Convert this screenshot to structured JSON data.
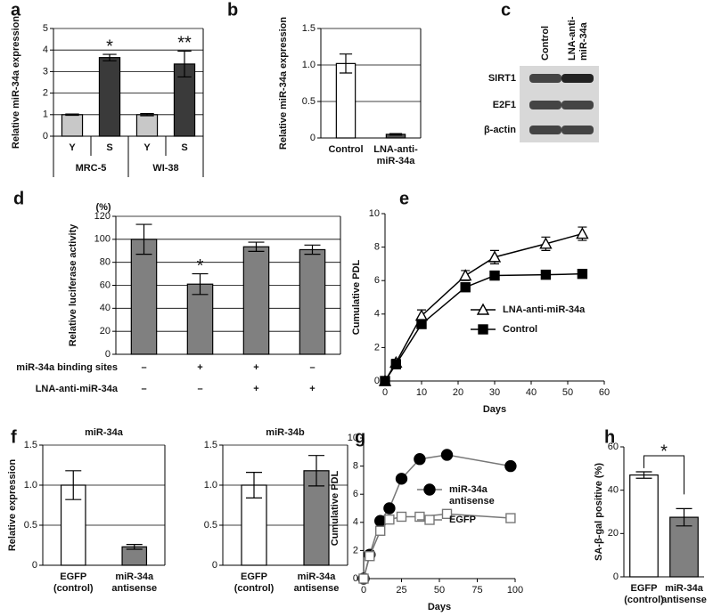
{
  "chart_data": [
    {
      "type": "bar",
      "panel": "a",
      "y_label": "Relative miR-34a expression",
      "categories": [
        "Y",
        "S",
        "Y",
        "S"
      ],
      "groups": [
        "MRC-5",
        "WI-38"
      ],
      "values": [
        1,
        3.65,
        1,
        3.35
      ],
      "errors": [
        0.03,
        0.15,
        0.05,
        0.6
      ],
      "colors": [
        "#c8c8c8",
        "#3a3a3a",
        "#c8c8c8",
        "#3a3a3a"
      ],
      "ylim": [
        0,
        5
      ],
      "yticks": [
        0,
        1,
        2,
        3,
        4,
        5
      ],
      "grid": true,
      "annotations": [
        "*",
        "**"
      ]
    },
    {
      "type": "bar",
      "panel": "b",
      "y_label": "Relative miR-34a expression",
      "categories": [
        "Control",
        "LNA-anti-\nmiR-34a"
      ],
      "values": [
        1.02,
        0.05
      ],
      "errors": [
        0.13,
        0.01
      ],
      "colors": [
        "#ffffff",
        "#555555"
      ],
      "ylim": [
        0,
        1.5
      ],
      "yticks": [
        0,
        0.5,
        {
          "value": 1,
          "label": "1.0"
        },
        1.5
      ],
      "grid": true
    },
    {
      "type": "blot",
      "panel": "c",
      "lanes": [
        "Control",
        "LNA-anti-\nmiR-34a"
      ],
      "rows": [
        "SIRT1",
        "E2F1",
        "β-actin"
      ]
    },
    {
      "type": "bar",
      "panel": "d",
      "y_label": "Relative luciferase activity",
      "y_unit": "(%)",
      "values": [
        100,
        61,
        93.5,
        91
      ],
      "errors": [
        13,
        9,
        4,
        4
      ],
      "colors": [
        "#808080",
        "#808080",
        "#808080",
        "#808080"
      ],
      "ylim": [
        0,
        120
      ],
      "yticks": [
        0,
        20,
        40,
        60,
        80,
        100,
        120
      ],
      "grid": true,
      "annotations": [
        "*"
      ],
      "conditions": [
        {
          "label": "miR-34a binding sites",
          "values": [
            "–",
            "+",
            "+",
            "–"
          ]
        },
        {
          "label": "LNA-anti-miR-34a",
          "values": [
            "–",
            "–",
            "+",
            "+"
          ]
        }
      ]
    },
    {
      "type": "line",
      "panel": "e",
      "x_label": "Days",
      "y_label": "Cumulative PDL",
      "x": [
        0,
        3,
        10,
        22,
        30,
        44,
        54
      ],
      "series": [
        {
          "name": "LNA-anti-miR-34a",
          "color": "#000000",
          "marker": "triangle-open",
          "values": [
            0,
            1.1,
            3.9,
            6.3,
            7.4,
            8.2,
            8.8
          ],
          "errors": [
            0,
            0.2,
            0.35,
            0.3,
            0.4,
            0.4,
            0.4
          ]
        },
        {
          "name": "Control",
          "color": "#000000",
          "marker": "square-filled",
          "values": [
            0,
            1.0,
            3.4,
            5.6,
            6.3,
            6.35,
            6.4
          ]
        }
      ],
      "xlim": [
        0,
        60
      ],
      "xticks": [
        0,
        10,
        20,
        30,
        40,
        50,
        60
      ],
      "ylim": [
        0,
        10
      ],
      "yticks": [
        0,
        2,
        4,
        6,
        8,
        10
      ],
      "legend": "lower right"
    },
    {
      "type": "bar",
      "panel": "f",
      "title": "miR-34a",
      "y_label": "Relative expression",
      "categories": [
        "EGFP\n(control)",
        "miR-34a\nantisense"
      ],
      "values": [
        1.0,
        0.23
      ],
      "errors": [
        0.18,
        0.03
      ],
      "colors": [
        "#ffffff",
        "#808080"
      ],
      "ylim": [
        0,
        1.5
      ],
      "yticks": [
        0,
        0.5,
        {
          "value": 1,
          "label": "1.0"
        },
        1.5
      ],
      "grid": true
    },
    {
      "type": "bar",
      "title": "miR-34b",
      "categories": [
        "EGFP\n(control)",
        "miR-34a\nantisense"
      ],
      "values": [
        1.0,
        1.18
      ],
      "errors": [
        0.16,
        0.19
      ],
      "colors": [
        "#ffffff",
        "#808080"
      ],
      "ylim": [
        0,
        1.5
      ],
      "yticks": [
        0,
        0.5,
        {
          "value": 1,
          "label": "1.0"
        },
        1.5
      ],
      "grid": true
    },
    {
      "type": "line",
      "panel": "g",
      "x_label": "Days",
      "y_label": "Cumulative PDL",
      "x": [
        0,
        4,
        11,
        17,
        25,
        37,
        55,
        97
      ],
      "series": [
        {
          "name": "miR-34a\nantisense",
          "color": "#777777",
          "marker": "circle-filled",
          "values": [
            0,
            1.7,
            4.1,
            5.0,
            7.1,
            8.5,
            8.8,
            8.0
          ]
        },
        {
          "name": "EGFP",
          "color": "#777777",
          "marker": "square-open",
          "values": [
            0,
            1.6,
            3.4,
            4.2,
            4.4,
            4.4,
            4.6,
            4.3
          ]
        }
      ],
      "xlim": [
        0,
        100
      ],
      "xticks": [
        0,
        25,
        50,
        75,
        100
      ],
      "ylim": [
        0,
        10
      ],
      "yticks": [
        0,
        2,
        4,
        6,
        8,
        10
      ],
      "legend": "lower right"
    },
    {
      "type": "bar",
      "panel": "h",
      "y_label": "SA-β-gal positive (%)",
      "categories": [
        "EGFP\n(control)",
        "miR-34a\nantisense"
      ],
      "values": [
        47,
        27.5
      ],
      "errors": [
        1.5,
        4
      ],
      "colors": [
        "#ffffff",
        "#808080"
      ],
      "ylim": [
        0,
        60
      ],
      "yticks": [
        0,
        20,
        40,
        60
      ],
      "grid": false,
      "annotations": [
        "*"
      ]
    }
  ]
}
